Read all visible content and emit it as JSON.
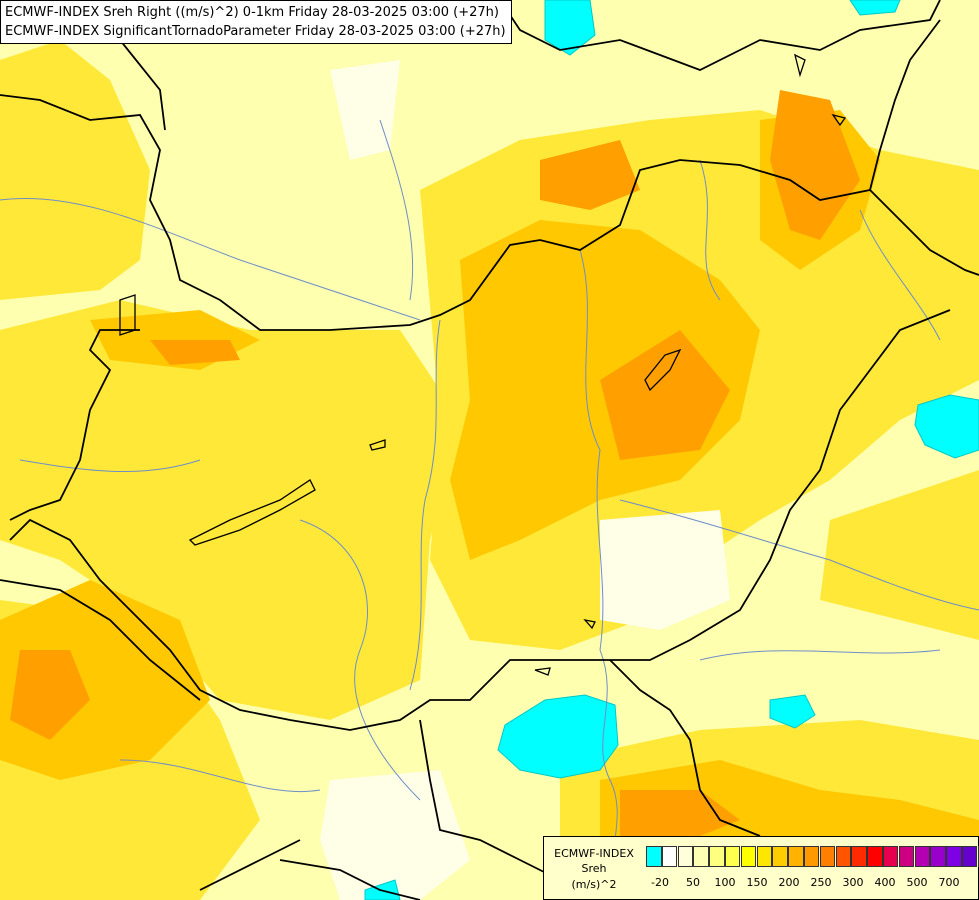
{
  "title": {
    "line1": "ECMWF-INDEX Sreh Right ((m/s)^2) 0-1km Friday 28-03-2025 03:00 (+27h)",
    "line2": "ECMWF-INDEX SignificantTornadoParameter Friday 28-03-2025 03:00 (+27h)"
  },
  "legend": {
    "title_line1": "ECMWF-INDEX",
    "title_line2": "Sreh",
    "title_line3": "(m/s)^2",
    "colors": [
      "#00ffff",
      "#ffffff",
      "#ffffd9",
      "#ffffb3",
      "#ffff80",
      "#ffff4d",
      "#ffff00",
      "#ffe600",
      "#ffcc00",
      "#ffb300",
      "#ff9900",
      "#ff7f00",
      "#ff5500",
      "#ff2a00",
      "#ff0000",
      "#e6004d",
      "#cc0080",
      "#b300b3",
      "#9900cc",
      "#8000e6",
      "#6600cc",
      "#4d00b3",
      "#330099",
      "#000080"
    ],
    "ticks": [
      "-20",
      "50",
      "100",
      "150",
      "200",
      "250",
      "300",
      "400",
      "500",
      "700"
    ]
  }
}
